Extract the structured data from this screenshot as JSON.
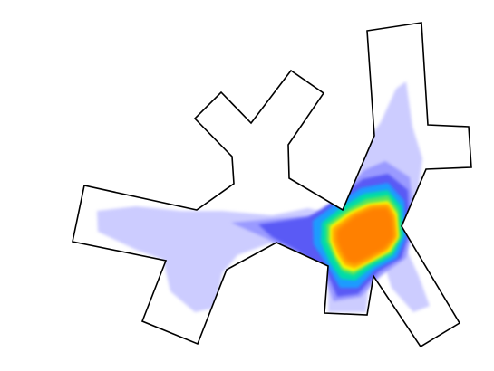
{
  "figure": {
    "background_color": "#ffffff",
    "outline_color": "#000000",
    "colormap": [
      "#ccccff",
      "#9a9aff",
      "#5a5af5",
      "#1e9bff",
      "#00dca8",
      "#5ae65a",
      "#ffff00",
      "#ffc000",
      "#ff8000"
    ]
  }
}
